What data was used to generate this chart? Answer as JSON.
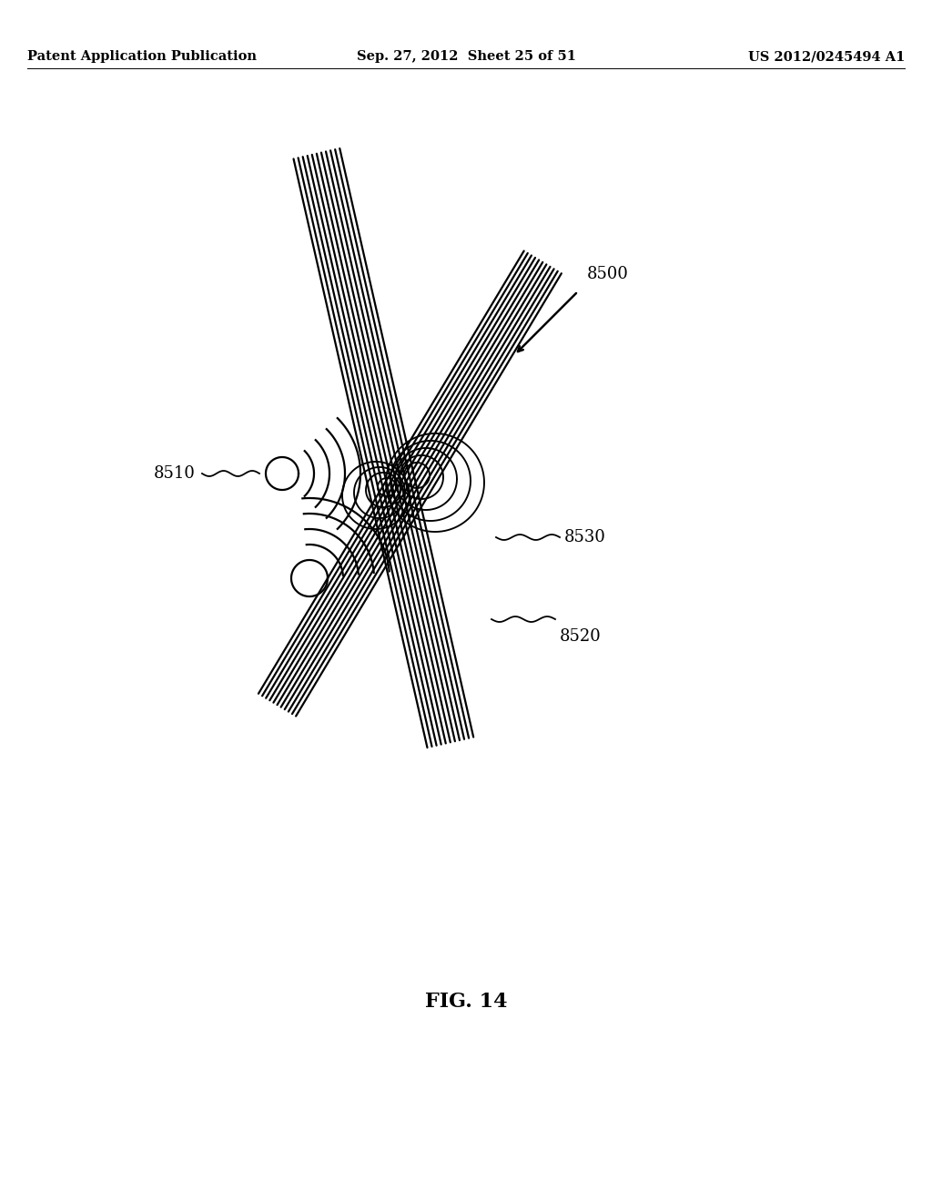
{
  "title": "FIG. 14",
  "header_left": "Patent Application Publication",
  "header_center": "Sep. 27, 2012  Sheet 25 of 51",
  "header_right": "US 2012/0245494 A1",
  "bg_color": "#ffffff",
  "label_8500": "8500",
  "label_8510": "8510",
  "label_8520": "8520",
  "label_8530": "8530",
  "line_color": "#000000",
  "line_width": 1.6,
  "font_size_header": 10.5,
  "font_size_label": 13,
  "font_size_title": 16,
  "n_bundle1": 11,
  "n_bundle2": 11
}
